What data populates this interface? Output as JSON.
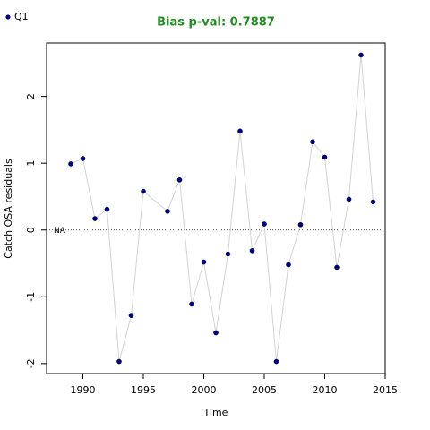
{
  "chart_data": {
    "type": "scatter-line",
    "title": "Bias p-val: 0.7887",
    "title_color": "#228b22",
    "x_label": "Time",
    "y_label": "Catch OSA residuals",
    "annotation": "NA",
    "hline": 0,
    "line_color": "#d3d3d3",
    "x": [
      1989,
      1990,
      1991,
      1992,
      1993,
      1994,
      1995,
      1997,
      1998,
      1999,
      2000,
      2001,
      2002,
      2003,
      2004,
      2005,
      2006,
      2007,
      2008,
      2009,
      2010,
      2011,
      2012,
      2013,
      2014
    ],
    "series": [
      {
        "name": "Q1",
        "color": "#00008b",
        "values": [
          0.99,
          1.07,
          0.17,
          0.31,
          -1.97,
          -1.28,
          0.58,
          0.28,
          0.75,
          -1.11,
          -0.48,
          -1.54,
          -0.36,
          1.48,
          -0.31,
          0.09,
          -1.97,
          -0.52,
          0.08,
          1.32,
          1.09,
          -0.56,
          0.46,
          2.62,
          0.42
        ]
      }
    ],
    "xlim": [
      1987,
      2015
    ],
    "ylim": [
      -2.15,
      2.8
    ],
    "xticks": [
      1990,
      1995,
      2000,
      2005,
      2010,
      2015
    ],
    "yticks": [
      -2,
      -1,
      0,
      1,
      2
    ]
  }
}
